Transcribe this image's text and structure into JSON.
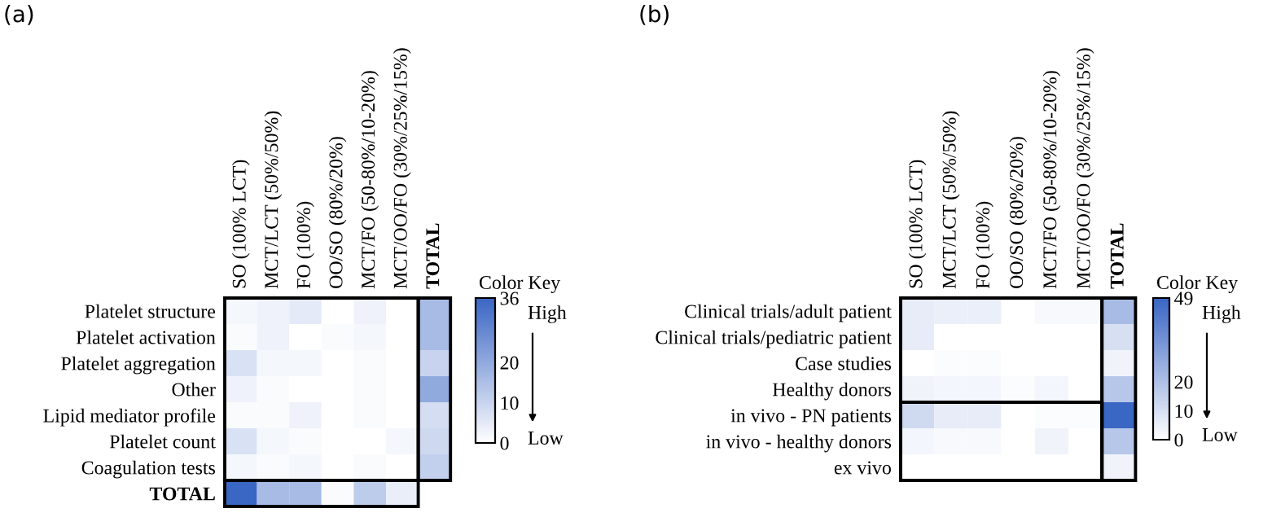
{
  "chart_data": [
    {
      "type": "heatmap",
      "title": "(a)",
      "clabel": "Color Key",
      "annotations": [
        "High",
        "Low"
      ],
      "categories": [
        "SO (100% LCT)",
        "MCT/LCT (50%/50%)",
        "FO (100%)",
        "OO/SO (80%/20%)",
        "MCT/FO (50-80%/10-20%)",
        "MCT/OO/FO (30%/25%/15%)",
        "TOTAL"
      ],
      "y_categories": [
        "Platelet structure",
        "Platelet activation",
        "Platelet aggregation",
        "Other",
        "Lipid mediator profile",
        "Platelet count",
        "Coagulation tests",
        "TOTAL"
      ],
      "cells": [
        [
          2,
          3,
          5,
          0,
          3,
          0,
          16
        ],
        [
          1,
          3,
          0,
          1,
          2,
          0,
          16
        ],
        [
          7,
          2,
          2,
          0,
          1,
          0,
          10
        ],
        [
          3,
          1,
          0,
          0,
          1,
          0,
          20
        ],
        [
          1,
          1,
          3,
          0,
          1,
          0,
          8
        ],
        [
          7,
          2,
          1,
          0,
          0,
          2,
          9
        ],
        [
          2,
          1,
          2,
          0,
          1,
          0,
          11
        ],
        [
          36,
          16,
          16,
          1,
          12,
          4,
          null
        ]
      ],
      "clim": [
        0,
        36
      ],
      "cticks": [
        0,
        10,
        20,
        36
      ]
    },
    {
      "type": "heatmap",
      "title": "(b)",
      "clabel": "Color Key",
      "annotations": [
        "High",
        "Low"
      ],
      "categories": [
        "SO (100% LCT)",
        "MCT/LCT (50%/50%)",
        "FO (100%)",
        "OO/SO (80%/20%)",
        "MCT/FO (50-80%/10-20%)",
        "MCT/OO/FO (30%/25%/15%)",
        "TOTAL"
      ],
      "y_categories": [
        "Clinical trials/adult patient",
        "Clinical trials/pediatric patient",
        "Case studies",
        "Healthy donors",
        "in vivo - PN patients",
        "in vivo - healthy donors",
        "ex vivo"
      ],
      "cells": [
        [
          6,
          5,
          5,
          0,
          2,
          2,
          22
        ],
        [
          6,
          0,
          0,
          0,
          0,
          0,
          10
        ],
        [
          0,
          1,
          1,
          0,
          0,
          0,
          4
        ],
        [
          4,
          3,
          3,
          1,
          3,
          0,
          18
        ],
        [
          12,
          6,
          6,
          0,
          1,
          1,
          49
        ],
        [
          3,
          2,
          2,
          0,
          4,
          0,
          18
        ],
        [
          0,
          0,
          0,
          0,
          0,
          0,
          4
        ]
      ],
      "clim": [
        0,
        49
      ],
      "cticks": [
        0,
        10,
        20,
        49
      ]
    }
  ]
}
